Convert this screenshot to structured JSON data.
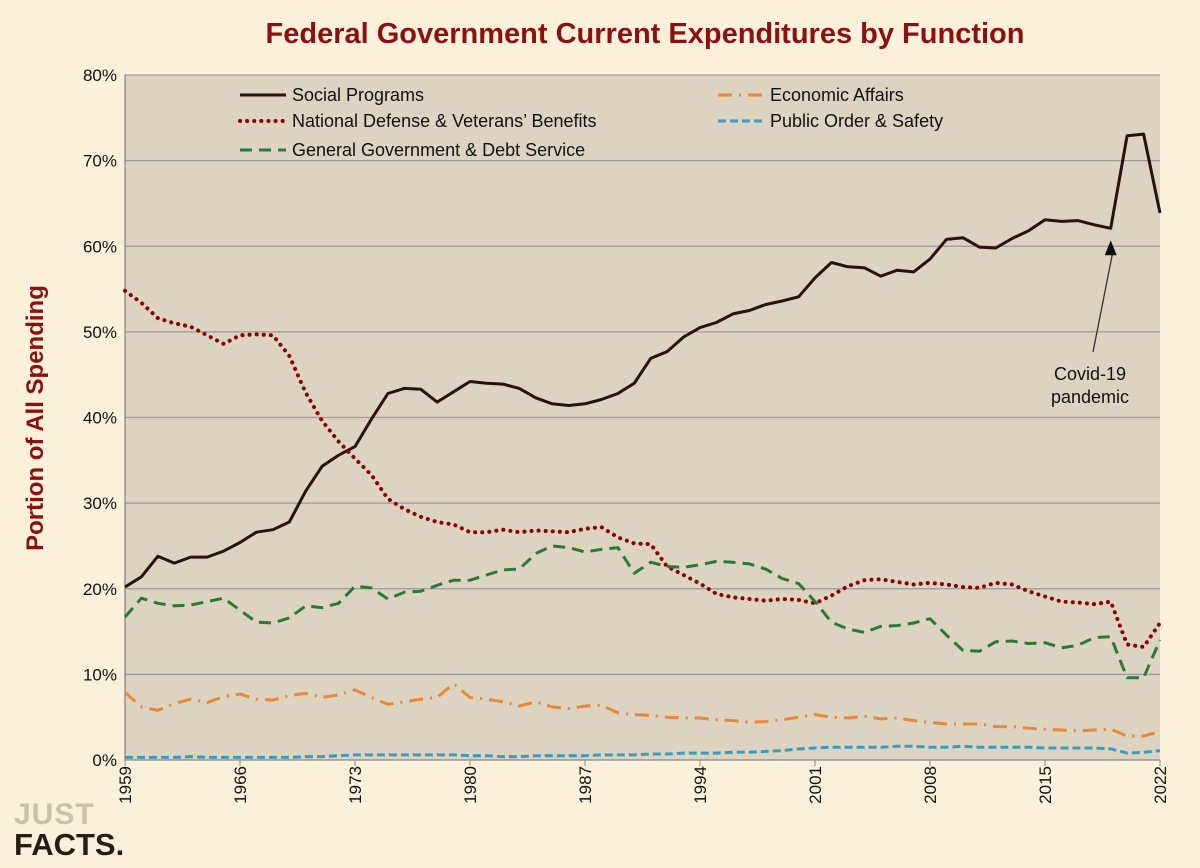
{
  "chart_data": {
    "type": "line",
    "title": "Federal Government Current Expenditures by Function",
    "xlabel": "",
    "ylabel": "Portion of All Spending",
    "ylim": [
      0,
      80
    ],
    "yticks": [
      "0%",
      "10%",
      "20%",
      "30%",
      "40%",
      "50%",
      "60%",
      "70%",
      "80%"
    ],
    "xticks": [
      "1959",
      "1966",
      "1973",
      "1980",
      "1987",
      "1994",
      "2001",
      "2008",
      "2015",
      "2022"
    ],
    "x_start": 1959,
    "x_end": 2022,
    "grid": true,
    "legend_placement": "top",
    "annotation": {
      "line1": "Covid-19",
      "line2": "pandemic",
      "year": 2019
    },
    "series": [
      {
        "name": "Social Programs",
        "color": "#2b1010",
        "style": "solid",
        "values": [
          20.2,
          21.4,
          23.8,
          23.0,
          23.7,
          23.7,
          24.4,
          25.4,
          26.6,
          26.9,
          27.8,
          31.4,
          34.3,
          35.6,
          36.6,
          39.8,
          42.8,
          43.4,
          43.3,
          41.8,
          43.0,
          44.2,
          44.0,
          43.9,
          43.4,
          42.3,
          41.6,
          41.4,
          41.6,
          42.1,
          42.8,
          44.0,
          46.9,
          47.7,
          49.4,
          50.5,
          51.1,
          52.1,
          52.5,
          53.2,
          53.6,
          54.1,
          56.3,
          58.1,
          57.6,
          57.5,
          56.5,
          57.2,
          57.0,
          58.5,
          60.8,
          61.0,
          59.9,
          59.8,
          60.9,
          61.8,
          63.1,
          62.9,
          63.0,
          62.5,
          62.1,
          72.9,
          73.1,
          63.9
        ]
      },
      {
        "name": "Economic Affairs",
        "color": "#e8883a",
        "style": "dashdot",
        "values": [
          7.9,
          6.2,
          5.8,
          6.6,
          7.1,
          6.7,
          7.4,
          7.7,
          7.1,
          7.0,
          7.5,
          7.8,
          7.3,
          7.6,
          8.2,
          7.3,
          6.5,
          6.8,
          7.1,
          7.3,
          8.9,
          7.3,
          7.1,
          6.8,
          6.3,
          6.8,
          6.2,
          6.0,
          6.3,
          6.4,
          5.5,
          5.3,
          5.2,
          5.0,
          4.9,
          4.9,
          4.7,
          4.6,
          4.4,
          4.5,
          4.7,
          5.0,
          5.3,
          5.0,
          4.9,
          5.1,
          4.8,
          4.9,
          4.6,
          4.4,
          4.2,
          4.2,
          4.2,
          3.9,
          3.9,
          3.7,
          3.6,
          3.5,
          3.4,
          3.5,
          3.6,
          2.8,
          2.8,
          3.3
        ]
      },
      {
        "name": "National Defense & Veterans’ Benefits",
        "color": "#8b0000",
        "style": "dotted",
        "values": [
          54.8,
          53.4,
          51.6,
          51.0,
          50.6,
          49.6,
          48.6,
          49.6,
          49.7,
          49.6,
          47.2,
          42.9,
          39.6,
          37.2,
          35.2,
          33.3,
          30.5,
          29.3,
          28.4,
          27.8,
          27.5,
          26.6,
          26.6,
          26.9,
          26.6,
          26.8,
          26.7,
          26.6,
          27.0,
          27.2,
          26.0,
          25.3,
          25.2,
          22.6,
          21.6,
          20.6,
          19.4,
          19.0,
          18.8,
          18.6,
          18.8,
          18.7,
          18.3,
          19.2,
          20.3,
          21.0,
          21.1,
          20.8,
          20.5,
          20.7,
          20.5,
          20.2,
          20.1,
          20.7,
          20.5,
          19.7,
          19.1,
          18.5,
          18.4,
          18.2,
          18.5,
          13.5,
          13.2,
          16.0
        ]
      },
      {
        "name": "Public Order & Safety",
        "color": "#3a9cc0",
        "style": "shortdash",
        "values": [
          0.3,
          0.3,
          0.3,
          0.3,
          0.4,
          0.3,
          0.3,
          0.3,
          0.3,
          0.3,
          0.3,
          0.4,
          0.4,
          0.5,
          0.6,
          0.6,
          0.6,
          0.6,
          0.6,
          0.6,
          0.6,
          0.5,
          0.5,
          0.4,
          0.4,
          0.5,
          0.5,
          0.5,
          0.5,
          0.6,
          0.6,
          0.6,
          0.7,
          0.7,
          0.8,
          0.8,
          0.8,
          0.9,
          0.9,
          1.0,
          1.1,
          1.3,
          1.4,
          1.5,
          1.5,
          1.5,
          1.5,
          1.6,
          1.6,
          1.5,
          1.5,
          1.6,
          1.5,
          1.5,
          1.5,
          1.5,
          1.4,
          1.4,
          1.4,
          1.4,
          1.3,
          0.8,
          0.9,
          1.1
        ]
      },
      {
        "name": "General Government & Debt Service",
        "color": "#2a7a35",
        "style": "dashed",
        "values": [
          16.7,
          18.9,
          18.3,
          18.0,
          18.1,
          18.5,
          18.9,
          17.5,
          16.1,
          16.0,
          16.6,
          18.0,
          17.8,
          18.3,
          20.3,
          20.1,
          18.8,
          19.6,
          19.7,
          20.4,
          21.0,
          21.0,
          21.6,
          22.2,
          22.3,
          24.1,
          25.0,
          24.8,
          24.3,
          24.6,
          24.8,
          21.8,
          23.1,
          22.6,
          22.5,
          22.8,
          23.2,
          23.1,
          22.9,
          22.3,
          21.2,
          20.6,
          18.5,
          16.1,
          15.3,
          14.9,
          15.6,
          15.7,
          16.0,
          16.5,
          14.6,
          12.8,
          12.7,
          13.8,
          13.9,
          13.6,
          13.7,
          13.1,
          13.4,
          14.3,
          14.4,
          9.6,
          9.6,
          14.0
        ]
      }
    ]
  },
  "logo": {
    "line1": "JUST",
    "line2": "FACTS."
  }
}
